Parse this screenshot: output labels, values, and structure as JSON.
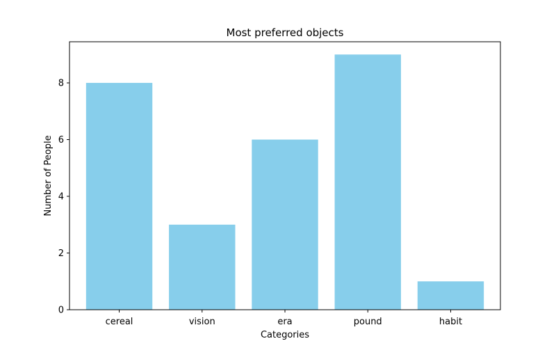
{
  "chart_data": {
    "type": "bar",
    "title": "Most preferred objects",
    "xlabel": "Categories",
    "ylabel": "Number of People",
    "categories": [
      "cereal",
      "vision",
      "era",
      "pound",
      "habit"
    ],
    "values": [
      8,
      3,
      6,
      9,
      1
    ],
    "ylim": [
      0,
      9.45
    ],
    "yticks": [
      0,
      2,
      4,
      6,
      8
    ],
    "bar_color": "#87ceeb",
    "grid": false,
    "legend": "none"
  }
}
